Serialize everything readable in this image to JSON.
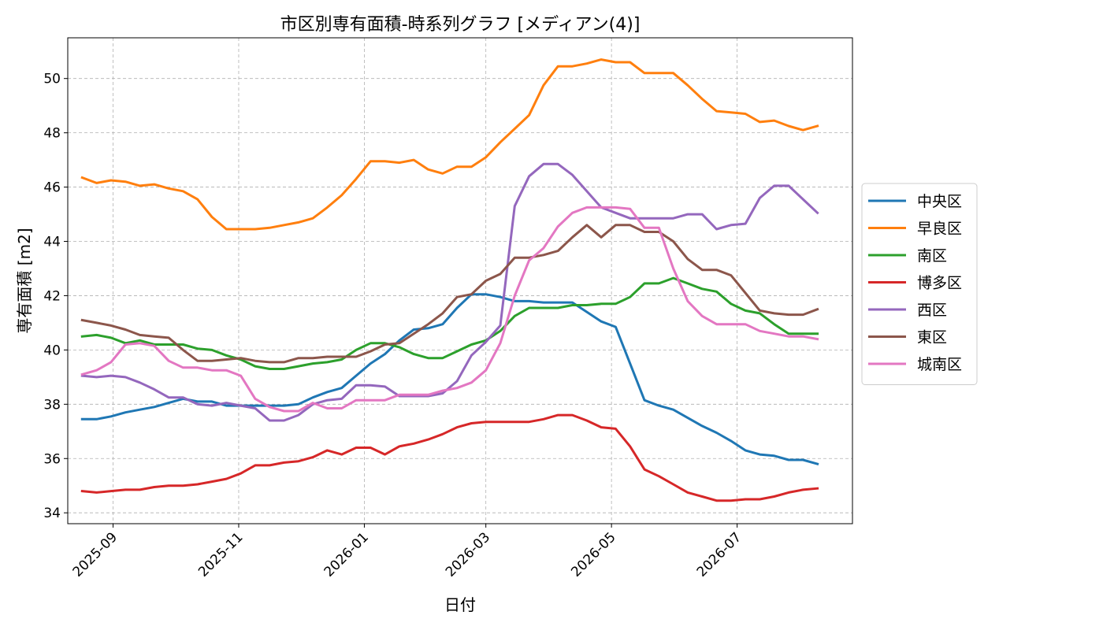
{
  "chart_data": {
    "type": "line",
    "title": "市区別専有面積-時系列グラフ [メディアン(4)]",
    "xlabel": "日付",
    "ylabel": "専有面積 [m2]",
    "ylim": [
      33.6,
      51.5
    ],
    "xlim": [
      "2025-08-10",
      "2026-08-26"
    ],
    "grid": true,
    "legend_position": "right",
    "yticks": [
      34,
      36,
      38,
      40,
      42,
      44,
      46,
      48,
      50
    ],
    "xticks": [
      {
        "date": "2025-09-01",
        "label": "2025-09"
      },
      {
        "date": "2025-11-01",
        "label": "2025-11"
      },
      {
        "date": "2026-01-01",
        "label": "2026-01"
      },
      {
        "date": "2026-03-01",
        "label": "2026-03"
      },
      {
        "date": "2026-05-01",
        "label": "2026-05"
      },
      {
        "date": "2026-07-01",
        "label": "2026-07"
      }
    ],
    "x": [
      "2025-08-17",
      "2025-08-24",
      "2025-08-31",
      "2025-09-07",
      "2025-09-14",
      "2025-09-21",
      "2025-09-28",
      "2025-10-05",
      "2025-10-12",
      "2025-10-19",
      "2025-10-26",
      "2025-11-02",
      "2025-11-09",
      "2025-11-16",
      "2025-11-23",
      "2025-11-30",
      "2025-12-07",
      "2025-12-14",
      "2025-12-21",
      "2025-12-28",
      "2026-01-04",
      "2026-01-11",
      "2026-01-18",
      "2026-01-25",
      "2026-02-01",
      "2026-02-08",
      "2026-02-15",
      "2026-02-22",
      "2026-03-01",
      "2026-03-08",
      "2026-03-15",
      "2026-03-22",
      "2026-03-29",
      "2026-04-05",
      "2026-04-12",
      "2026-04-19",
      "2026-04-26",
      "2026-05-03",
      "2026-05-10",
      "2026-05-17",
      "2026-05-24",
      "2026-05-31",
      "2026-06-07",
      "2026-06-14",
      "2026-06-21",
      "2026-06-28",
      "2026-07-05",
      "2026-07-12",
      "2026-07-19",
      "2026-07-26",
      "2026-08-02",
      "2026-08-09",
      "2026-08-16"
    ],
    "series": [
      {
        "name": "中央区",
        "color": "#1f77b4",
        "values": [
          37.45,
          37.45,
          37.55,
          37.7,
          37.8,
          37.9,
          38.05,
          38.2,
          38.1,
          38.1,
          37.95,
          37.95,
          37.95,
          37.95,
          37.95,
          38.0,
          38.25,
          38.45,
          38.6,
          39.05,
          39.5,
          39.85,
          40.35,
          40.75,
          40.8,
          40.95,
          41.55,
          42.05,
          42.05,
          41.95,
          41.8,
          41.8,
          41.75,
          41.75,
          41.75,
          41.4,
          41.05,
          40.85,
          39.5,
          38.15,
          37.95,
          37.8,
          37.5,
          37.2,
          36.95,
          36.65,
          36.3,
          36.15,
          36.1,
          35.95,
          35.95,
          35.8,
          null
        ]
      },
      {
        "name": "早良区",
        "color": "#ff7f0e",
        "values": [
          46.35,
          46.15,
          46.25,
          46.2,
          46.05,
          46.1,
          45.95,
          45.85,
          45.55,
          44.9,
          44.45,
          44.45,
          44.45,
          44.5,
          44.6,
          44.7,
          44.85,
          45.25,
          45.7,
          46.3,
          46.95,
          46.95,
          46.9,
          47.0,
          46.65,
          46.5,
          46.75,
          46.75,
          47.1,
          47.65,
          48.15,
          48.65,
          49.75,
          50.45,
          50.45,
          50.55,
          50.7,
          50.6,
          50.6,
          50.2,
          50.2,
          50.2,
          49.75,
          49.25,
          48.8,
          48.75,
          48.7,
          48.4,
          48.45,
          48.25,
          48.1,
          48.25,
          null
        ]
      },
      {
        "name": "南区",
        "color": "#2ca02c",
        "values": [
          40.5,
          40.55,
          40.45,
          40.25,
          40.35,
          40.2,
          40.2,
          40.2,
          40.05,
          40.0,
          39.8,
          39.65,
          39.4,
          39.3,
          39.3,
          39.4,
          39.5,
          39.55,
          39.65,
          40.0,
          40.25,
          40.25,
          40.1,
          39.85,
          39.7,
          39.7,
          39.95,
          40.2,
          40.35,
          40.7,
          41.25,
          41.55,
          41.55,
          41.55,
          41.65,
          41.65,
          41.7,
          41.7,
          41.95,
          42.45,
          42.45,
          42.65,
          42.45,
          42.25,
          42.15,
          41.7,
          41.45,
          41.35,
          40.95,
          40.6,
          40.6,
          40.6,
          null
        ]
      },
      {
        "name": "博多区",
        "color": "#d62728",
        "values": [
          34.8,
          34.75,
          34.8,
          34.85,
          34.85,
          34.95,
          35.0,
          35.0,
          35.05,
          35.15,
          35.25,
          35.45,
          35.75,
          35.75,
          35.85,
          35.9,
          36.05,
          36.3,
          36.15,
          36.4,
          36.4,
          36.15,
          36.45,
          36.55,
          36.7,
          36.9,
          37.15,
          37.3,
          37.35,
          37.35,
          37.35,
          37.35,
          37.45,
          37.6,
          37.6,
          37.4,
          37.15,
          37.1,
          36.45,
          35.6,
          35.35,
          35.05,
          34.75,
          34.6,
          34.45,
          34.45,
          34.5,
          34.5,
          34.6,
          34.75,
          34.85,
          34.9,
          null
        ]
      },
      {
        "name": "西区",
        "color": "#9467bd",
        "values": [
          39.05,
          39.0,
          39.05,
          39.0,
          38.8,
          38.55,
          38.25,
          38.25,
          38.0,
          37.95,
          38.05,
          37.95,
          37.85,
          37.4,
          37.4,
          37.6,
          38.0,
          38.15,
          38.2,
          38.7,
          38.7,
          38.65,
          38.3,
          38.3,
          38.3,
          38.4,
          38.85,
          39.8,
          40.3,
          40.9,
          45.3,
          46.4,
          46.85,
          46.85,
          46.45,
          45.85,
          45.25,
          45.05,
          44.85,
          44.85,
          44.85,
          44.85,
          45.0,
          45.0,
          44.45,
          44.6,
          44.65,
          45.6,
          46.05,
          46.05,
          45.55,
          45.05,
          null
        ]
      },
      {
        "name": "東区",
        "color": "#8c564b",
        "values": [
          41.1,
          41.0,
          40.9,
          40.75,
          40.55,
          40.5,
          40.45,
          40.0,
          39.6,
          39.6,
          39.65,
          39.7,
          39.6,
          39.55,
          39.55,
          39.7,
          39.7,
          39.75,
          39.75,
          39.75,
          39.95,
          40.2,
          40.25,
          40.6,
          40.95,
          41.35,
          41.95,
          42.05,
          42.55,
          42.8,
          43.4,
          43.4,
          43.5,
          43.65,
          44.15,
          44.6,
          44.15,
          44.6,
          44.6,
          44.35,
          44.35,
          44.0,
          43.35,
          42.95,
          42.95,
          42.75,
          42.1,
          41.45,
          41.35,
          41.3,
          41.3,
          41.5,
          null
        ]
      },
      {
        "name": "城南区",
        "color": "#e377c2",
        "values": [
          39.1,
          39.25,
          39.55,
          40.2,
          40.25,
          40.15,
          39.6,
          39.35,
          39.35,
          39.25,
          39.25,
          39.05,
          38.2,
          37.9,
          37.75,
          37.75,
          38.05,
          37.85,
          37.85,
          38.15,
          38.15,
          38.15,
          38.35,
          38.35,
          38.35,
          38.5,
          38.6,
          38.8,
          39.25,
          40.25,
          42.0,
          43.3,
          43.75,
          44.55,
          45.05,
          45.25,
          45.25,
          45.25,
          45.2,
          44.5,
          44.5,
          43.0,
          41.8,
          41.25,
          40.95,
          40.95,
          40.95,
          40.7,
          40.6,
          40.5,
          40.5,
          40.4,
          null
        ]
      }
    ]
  }
}
